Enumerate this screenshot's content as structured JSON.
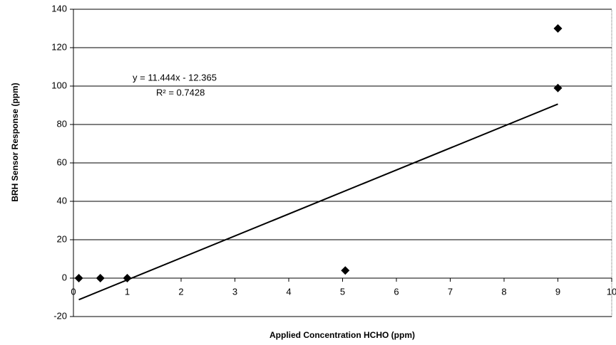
{
  "chart_data": {
    "type": "scatter",
    "xlabel": "Applied Concentration HCHO (ppm)",
    "ylabel": "BRH Sensor Response (ppm)",
    "series": [
      {
        "color": "#000000",
        "x": [
          0.1,
          0.5,
          1,
          5.05,
          9,
          9
        ],
        "values": [
          0,
          0,
          0,
          4,
          99,
          130
        ]
      }
    ],
    "xlim": [
      0,
      10
    ],
    "xticks": [
      0,
      1,
      2,
      3,
      4,
      5,
      6,
      7,
      8,
      9,
      10
    ],
    "ylim": [
      -20,
      140
    ],
    "yticks": [
      -20,
      0,
      20,
      40,
      60,
      80,
      100,
      120,
      140
    ],
    "grid": true,
    "trendline": {
      "equation": "y = 11.444x - 12.365",
      "r2_label": "R² = 0.7428",
      "slope": 11.444,
      "intercept": -12.365,
      "x_range": [
        0.1,
        9
      ]
    }
  }
}
